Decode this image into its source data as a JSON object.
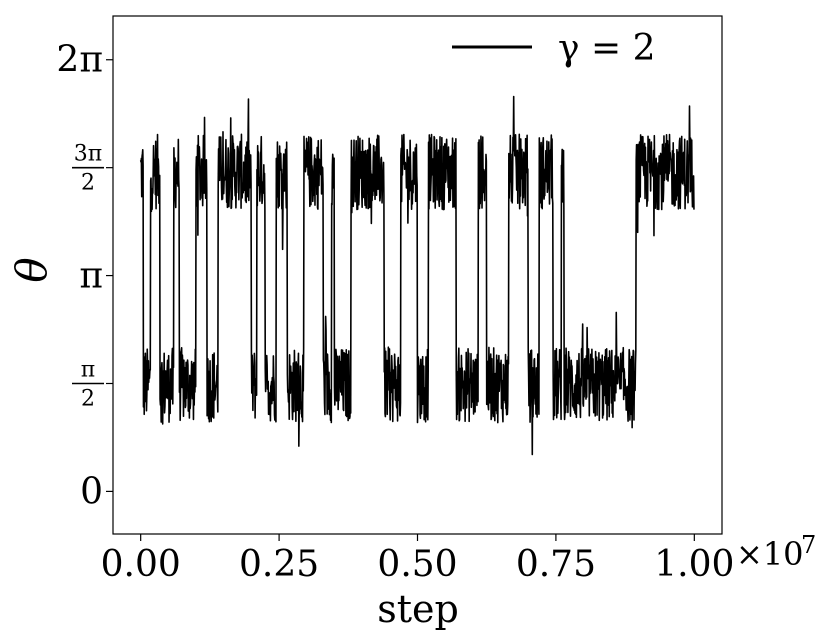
{
  "chart_data": {
    "type": "line",
    "xlabel": "step",
    "ylabel": "θ",
    "x_multiplier": "×10",
    "x_multiplier_exponent": "7",
    "xlim": [
      -0.05,
      1.05
    ],
    "ylim": [
      -0.62,
      6.92
    ],
    "xticks": [
      {
        "value": 0.0,
        "label": "0.00"
      },
      {
        "value": 0.25,
        "label": "0.25"
      },
      {
        "value": 0.5,
        "label": "0.50"
      },
      {
        "value": 0.75,
        "label": "0.75"
      },
      {
        "value": 1.0,
        "label": "1.00"
      }
    ],
    "yticks": [
      {
        "value": 0,
        "label": "0"
      },
      {
        "value": 1.5708,
        "num": "π",
        "den": "2"
      },
      {
        "value": 3.1416,
        "label": "π"
      },
      {
        "value": 4.7124,
        "num": "3π",
        "den": "2"
      },
      {
        "value": 6.2832,
        "label": "2π"
      }
    ],
    "legend": {
      "position": "top-right",
      "label": "γ = 2"
    },
    "series": [
      {
        "name": "γ = 2",
        "color": "#000000",
        "segments": [
          {
            "start": 0.0,
            "end": 0.005,
            "level": "high"
          },
          {
            "start": 0.005,
            "end": 0.018,
            "level": "low"
          },
          {
            "start": 0.018,
            "end": 0.035,
            "level": "high"
          },
          {
            "start": 0.035,
            "end": 0.06,
            "level": "low"
          },
          {
            "start": 0.06,
            "end": 0.07,
            "level": "high"
          },
          {
            "start": 0.07,
            "end": 0.1,
            "level": "low"
          },
          {
            "start": 0.1,
            "end": 0.12,
            "level": "high"
          },
          {
            "start": 0.12,
            "end": 0.14,
            "level": "low"
          },
          {
            "start": 0.14,
            "end": 0.2,
            "level": "high"
          },
          {
            "start": 0.2,
            "end": 0.21,
            "level": "low"
          },
          {
            "start": 0.21,
            "end": 0.225,
            "level": "high"
          },
          {
            "start": 0.225,
            "end": 0.245,
            "level": "low"
          },
          {
            "start": 0.245,
            "end": 0.265,
            "level": "high"
          },
          {
            "start": 0.265,
            "end": 0.295,
            "level": "low"
          },
          {
            "start": 0.295,
            "end": 0.33,
            "level": "high"
          },
          {
            "start": 0.33,
            "end": 0.345,
            "level": "low"
          },
          {
            "start": 0.345,
            "end": 0.35,
            "level": "high"
          },
          {
            "start": 0.35,
            "end": 0.38,
            "level": "low"
          },
          {
            "start": 0.38,
            "end": 0.44,
            "level": "high"
          },
          {
            "start": 0.44,
            "end": 0.47,
            "level": "low"
          },
          {
            "start": 0.47,
            "end": 0.5,
            "level": "high"
          },
          {
            "start": 0.5,
            "end": 0.52,
            "level": "low"
          },
          {
            "start": 0.52,
            "end": 0.57,
            "level": "high"
          },
          {
            "start": 0.57,
            "end": 0.61,
            "level": "low"
          },
          {
            "start": 0.61,
            "end": 0.625,
            "level": "high"
          },
          {
            "start": 0.625,
            "end": 0.665,
            "level": "low"
          },
          {
            "start": 0.665,
            "end": 0.7,
            "level": "high"
          },
          {
            "start": 0.7,
            "end": 0.72,
            "level": "low"
          },
          {
            "start": 0.72,
            "end": 0.745,
            "level": "high"
          },
          {
            "start": 0.745,
            "end": 0.76,
            "level": "low"
          },
          {
            "start": 0.76,
            "end": 0.765,
            "level": "high"
          },
          {
            "start": 0.765,
            "end": 0.895,
            "level": "low"
          },
          {
            "start": 0.895,
            "end": 1.0,
            "level": "high"
          }
        ],
        "level_values": {
          "high": 4.65,
          "low": 1.55
        },
        "spread": 0.55,
        "samples_per_unit": 1500
      }
    ]
  }
}
